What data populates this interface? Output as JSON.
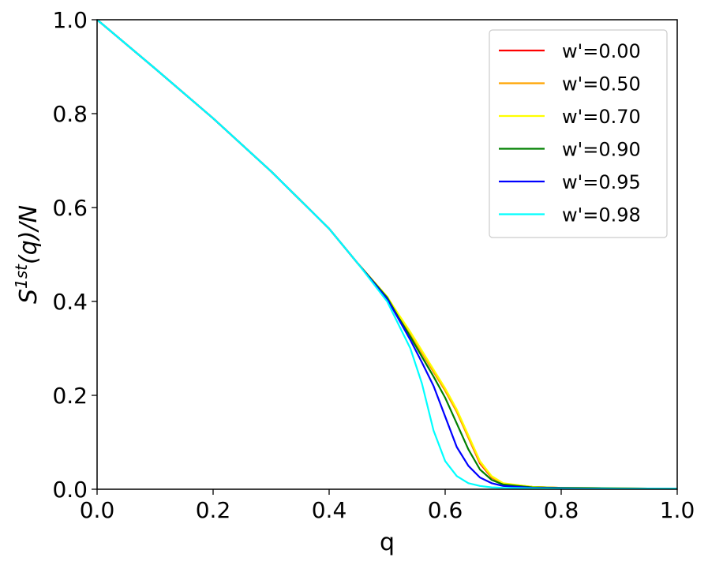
{
  "chart_data": {
    "type": "line",
    "xlabel": "q",
    "ylabel": "S^{1st}(q)/N",
    "ylabel_parts": {
      "base": "S",
      "sup": "1st",
      "rest": "(q)/N"
    },
    "xlim": [
      0.0,
      1.0
    ],
    "ylim": [
      0.0,
      1.0
    ],
    "xticks": [
      "0.0",
      "0.2",
      "0.4",
      "0.6",
      "0.8",
      "1.0"
    ],
    "yticks": [
      "0.0",
      "0.2",
      "0.4",
      "0.6",
      "0.8",
      "1.0"
    ],
    "grid": false,
    "legend_position": "top-right",
    "x": [
      0.0,
      0.1,
      0.2,
      0.3,
      0.4,
      0.45,
      0.5,
      0.52,
      0.54,
      0.56,
      0.58,
      0.6,
      0.62,
      0.64,
      0.66,
      0.68,
      0.7,
      0.75,
      0.8,
      0.9,
      1.0
    ],
    "series": [
      {
        "name": "w'=0.00",
        "color": "#ff0000",
        "values": [
          1.0,
          0.896,
          0.79,
          0.677,
          0.555,
          0.48,
          0.41,
          0.37,
          0.33,
          0.29,
          0.25,
          0.21,
          0.165,
          0.11,
          0.055,
          0.025,
          0.012,
          0.005,
          0.003,
          0.002,
          0.001
        ]
      },
      {
        "name": "w'=0.50",
        "color": "#ffa500",
        "values": [
          1.0,
          0.896,
          0.79,
          0.677,
          0.555,
          0.48,
          0.41,
          0.37,
          0.33,
          0.29,
          0.25,
          0.21,
          0.165,
          0.11,
          0.057,
          0.026,
          0.012,
          0.005,
          0.003,
          0.002,
          0.001
        ]
      },
      {
        "name": "w'=0.70",
        "color": "#ffff00",
        "values": [
          1.0,
          0.896,
          0.79,
          0.677,
          0.555,
          0.48,
          0.41,
          0.372,
          0.335,
          0.295,
          0.255,
          0.215,
          0.17,
          0.115,
          0.06,
          0.028,
          0.013,
          0.005,
          0.003,
          0.002,
          0.001
        ]
      },
      {
        "name": "w'=0.90",
        "color": "#008000",
        "values": [
          1.0,
          0.896,
          0.79,
          0.677,
          0.555,
          0.48,
          0.408,
          0.365,
          0.325,
          0.282,
          0.24,
          0.195,
          0.14,
          0.085,
          0.042,
          0.02,
          0.01,
          0.004,
          0.003,
          0.002,
          0.001
        ]
      },
      {
        "name": "w'=0.95",
        "color": "#0000ff",
        "values": [
          1.0,
          0.896,
          0.79,
          0.677,
          0.555,
          0.48,
          0.405,
          0.362,
          0.318,
          0.27,
          0.22,
          0.155,
          0.09,
          0.05,
          0.025,
          0.013,
          0.007,
          0.003,
          0.002,
          0.001,
          0.001
        ]
      },
      {
        "name": "w'=0.98",
        "color": "#00ffff",
        "values": [
          1.0,
          0.896,
          0.79,
          0.677,
          0.555,
          0.48,
          0.4,
          0.35,
          0.3,
          0.225,
          0.125,
          0.06,
          0.028,
          0.013,
          0.007,
          0.004,
          0.003,
          0.002,
          0.001,
          0.001,
          0.001
        ]
      }
    ]
  }
}
